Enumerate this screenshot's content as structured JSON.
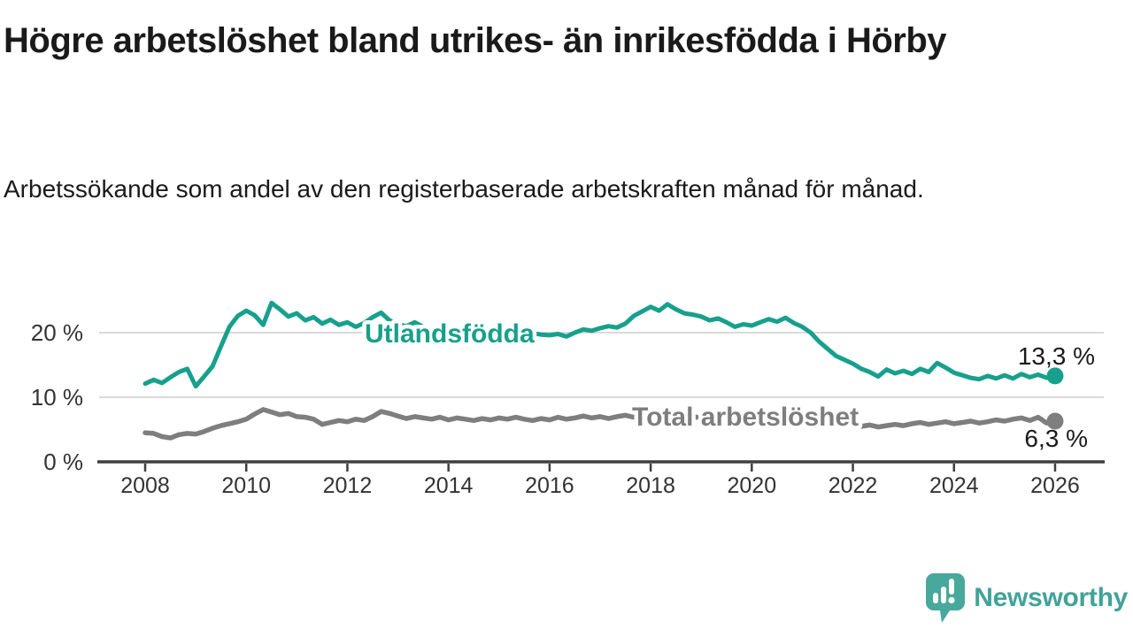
{
  "header": {
    "title": "Högre arbetslöshet bland utrikes- än inrikesfödda i Hörby",
    "subtitle": "Arbetssökande som andel av den registerbaserade arbetskraften månad för månad."
  },
  "branding": {
    "logo_text": "Newsworthy",
    "logo_icon": "newsworthy-speech-bubble-bar-chart",
    "logo_color": "#40a399"
  },
  "colors": {
    "foreign_born_line": "#17A08C",
    "total_line": "#7E7E7E",
    "gridline": "#DADADA",
    "axis": "#3F3F3F",
    "text": "#1a1a1a"
  },
  "chart_data": {
    "type": "line",
    "title": "Högre arbetslöshet bland utrikes- än inrikesfödda i Hörby",
    "subtitle": "Arbetssökande som andel av den registerbaserade arbetskraften månad för månad.",
    "x_unit": "years (monthly observations)",
    "x_start": 2008,
    "x_step": 0.1666667,
    "xlim": [
      2007.0,
      2027.0
    ],
    "ylim": [
      0,
      27
    ],
    "grid": "horizontal-only",
    "y_gridlines": [
      10,
      20
    ],
    "y_tick_values": [
      0,
      10,
      20
    ],
    "y_tick_labels": [
      "0 %",
      "10 %",
      "20 %"
    ],
    "x_ticks": [
      2008,
      2010,
      2012,
      2014,
      2016,
      2018,
      2020,
      2022,
      2024,
      2026
    ],
    "x_tick_labels": [
      "2008",
      "2010",
      "2012",
      "2014",
      "2016",
      "2018",
      "2020",
      "2022",
      "2024",
      "2026"
    ],
    "legend_position": "inline-labels-on-lines",
    "series": [
      {
        "name": "Utlandsfödda",
        "color": "#17A08C",
        "end_value": 13.3,
        "end_label": "13,3 %",
        "values": [
          12.1,
          12.7,
          12.2,
          13.1,
          13.9,
          14.4,
          11.7,
          13.2,
          14.8,
          17.9,
          20.9,
          22.6,
          23.4,
          22.7,
          21.2,
          24.6,
          23.6,
          22.5,
          23.0,
          21.9,
          22.4,
          21.4,
          22.0,
          21.2,
          21.6,
          20.9,
          21.5,
          22.4,
          23.1,
          21.9,
          21.3,
          21.0,
          21.6,
          20.9,
          20.4,
          20.6,
          20.2,
          20.5,
          20.0,
          20.4,
          20.7,
          20.3,
          20.5,
          20.1,
          20.3,
          20.0,
          19.9,
          19.7,
          19.6,
          19.8,
          19.4,
          20.0,
          20.5,
          20.3,
          20.7,
          21.0,
          20.8,
          21.4,
          22.6,
          23.3,
          24.0,
          23.4,
          24.4,
          23.6,
          23.0,
          22.8,
          22.5,
          21.9,
          22.2,
          21.6,
          20.9,
          21.3,
          21.1,
          21.6,
          22.1,
          21.7,
          22.3,
          21.5,
          20.9,
          20.0,
          18.6,
          17.5,
          16.4,
          15.8,
          15.2,
          14.4,
          13.9,
          13.2,
          14.3,
          13.7,
          14.1,
          13.6,
          14.4,
          13.9,
          15.3,
          14.6,
          13.8,
          13.4,
          13.0,
          12.8,
          13.3,
          12.9,
          13.4,
          12.9,
          13.6,
          13.1,
          13.5,
          13.0,
          13.3
        ]
      },
      {
        "name": "Total arbetslöshet",
        "color": "#7E7E7E",
        "end_value": 6.3,
        "end_label": "6,3 %",
        "values": [
          4.5,
          4.4,
          3.9,
          3.7,
          4.2,
          4.4,
          4.3,
          4.7,
          5.2,
          5.6,
          5.9,
          6.2,
          6.6,
          7.4,
          8.1,
          7.7,
          7.3,
          7.5,
          7.0,
          6.9,
          6.6,
          5.8,
          6.1,
          6.4,
          6.2,
          6.6,
          6.4,
          7.0,
          7.8,
          7.5,
          7.1,
          6.7,
          7.0,
          6.8,
          6.6,
          6.9,
          6.5,
          6.8,
          6.6,
          6.4,
          6.7,
          6.5,
          6.8,
          6.6,
          6.9,
          6.6,
          6.4,
          6.7,
          6.5,
          6.9,
          6.6,
          6.8,
          7.1,
          6.8,
          7.0,
          6.7,
          7.0,
          7.2,
          6.9,
          7.1,
          7.3,
          7.0,
          7.2,
          6.9,
          6.7,
          7.0,
          6.8,
          7.1,
          6.9,
          6.6,
          6.8,
          7.1,
          6.9,
          7.2,
          7.4,
          7.1,
          6.9,
          6.6,
          6.4,
          6.1,
          5.9,
          5.7,
          5.8,
          5.6,
          5.8,
          5.5,
          5.7,
          5.4,
          5.6,
          5.8,
          5.6,
          5.9,
          6.1,
          5.8,
          6.0,
          6.2,
          5.9,
          6.1,
          6.3,
          6.0,
          6.2,
          6.5,
          6.3,
          6.6,
          6.8,
          6.4,
          6.9,
          6.0,
          6.3
        ]
      }
    ]
  }
}
